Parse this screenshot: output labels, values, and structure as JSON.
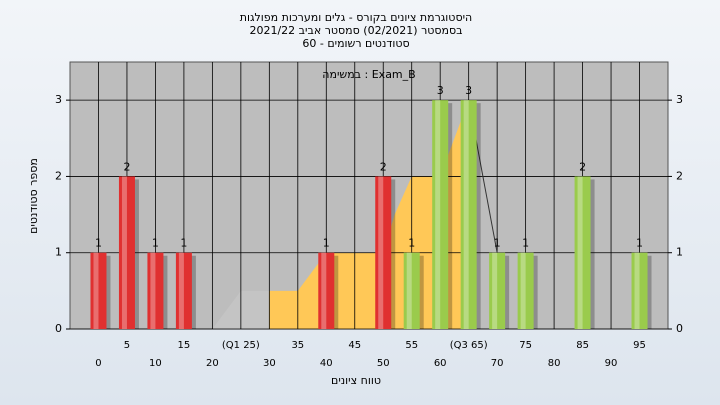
{
  "chart_data": {
    "type": "bar",
    "title": "היסטוגרמת ציונים בקורס - גלים ומערכות מפולגות",
    "subtitle": "בסמסטר (02/2021) סמסטר אביב 2021/22",
    "subtitle2": "סטודנטים רשומים - 60",
    "annotation": "במשימה : Exam_B",
    "xlabel": "טווח ציונים",
    "ylabel": "מספר סטודנטים",
    "x": [
      0,
      5,
      10,
      15,
      40,
      50,
      55,
      60,
      65,
      70,
      75,
      85,
      95
    ],
    "values": [
      1,
      2,
      1,
      1,
      1,
      2,
      1,
      3,
      3,
      1,
      1,
      2,
      1
    ],
    "colors": [
      "#e03030",
      "#e03030",
      "#e03030",
      "#e03030",
      "#e03030",
      "#e03030",
      "#9acb4c",
      "#9acb4c",
      "#9acb4c",
      "#9acb4c",
      "#9acb4c",
      "#9acb4c",
      "#9acb4c"
    ],
    "areas": [
      {
        "color": "#c4c4c4",
        "x": [
          20,
          25,
          30
        ],
        "values": [
          0,
          0.5,
          0.5
        ]
      },
      {
        "color": "#ffc857",
        "x": [
          30,
          35,
          40,
          45,
          50,
          52,
          55,
          60,
          65
        ],
        "values": [
          0.5,
          0.5,
          1,
          1,
          1,
          1.5,
          2,
          2,
          3
        ]
      }
    ],
    "lines": [
      {
        "color": "#333333",
        "x": [
          65,
          70
        ],
        "values": [
          3,
          1
        ]
      }
    ],
    "xlim": [
      -5,
      100
    ],
    "xticks": [
      0,
      5,
      10,
      15,
      20,
      {
        "value": 25,
        "label": "(Q1 25)"
      },
      30,
      35,
      40,
      45,
      50,
      55,
      60,
      {
        "value": 65,
        "label": "(Q3 65)"
      },
      70,
      75,
      80,
      85,
      90,
      95
    ],
    "ylim": [
      0,
      3.5
    ],
    "yticks": [
      0,
      1,
      2,
      3
    ],
    "y2lim": [
      0,
      3.5
    ],
    "y2ticks": [
      0,
      1,
      2,
      3
    ],
    "grid": true
  }
}
